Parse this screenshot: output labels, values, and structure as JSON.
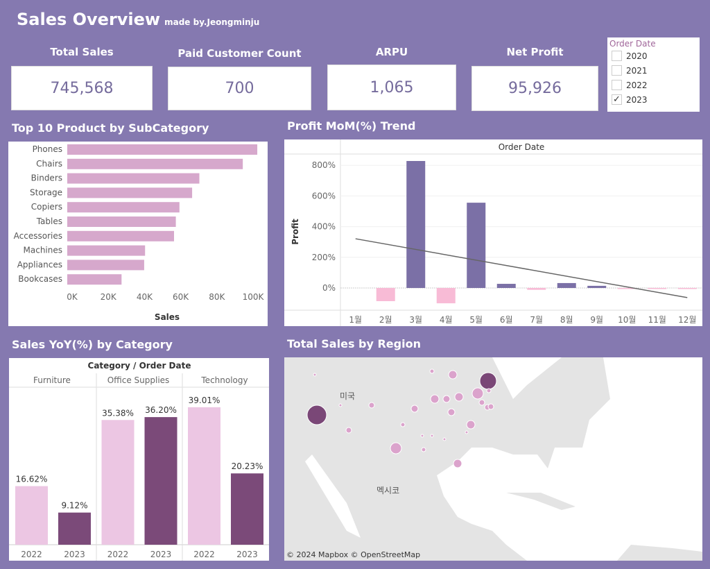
{
  "header": {
    "title": "Sales Overview",
    "subtitle": "made by.Jeongminju"
  },
  "kpis": [
    {
      "label": "Total Sales",
      "value": "745,568"
    },
    {
      "label": "Paid Customer Count",
      "value": "700"
    },
    {
      "label": "ARPU",
      "value": "1,065"
    },
    {
      "label": "Net Profit",
      "value": "95,926"
    }
  ],
  "filter": {
    "title": "Order Date",
    "options": [
      {
        "label": "2020",
        "checked": false
      },
      {
        "label": "2021",
        "checked": false
      },
      {
        "label": "2022",
        "checked": false
      },
      {
        "label": "2023",
        "checked": true
      }
    ]
  },
  "sections": {
    "top10": "Top 10 Product by SubCategory",
    "mom": "Profit MoM(%) Trend",
    "yoy": "Sales YoY(%) by Category",
    "region": "Total Sales by Region"
  },
  "colors": {
    "background": "#8579b0",
    "bar_pink": "#d6a8cc",
    "mom_positive": "#7b70a6",
    "mom_negative": "#f8bbd6",
    "yoy_2022": "#ecc6e3",
    "yoy_2023": "#7b4a79",
    "map_bubble": "#dba3cc",
    "map_bubble_large": "#7a4777"
  },
  "chart_data": [
    {
      "type": "bar",
      "orientation": "horizontal",
      "categories": [
        "Phones",
        "Chairs",
        "Binders",
        "Storage",
        "Copiers",
        "Tables",
        "Accessories",
        "Machines",
        "Appliances",
        "Bookcases"
      ],
      "values": [
        105000,
        97000,
        73000,
        69000,
        62000,
        60000,
        59000,
        43000,
        42500,
        30000
      ],
      "xlabel": "Sales",
      "xticks": [
        "0K",
        "20K",
        "40K",
        "60K",
        "80K",
        "100K"
      ],
      "xlim": [
        0,
        100000
      ]
    },
    {
      "type": "bar",
      "header": "Order Date",
      "ylabel": "Profit",
      "categories": [
        "1월",
        "2월",
        "3월",
        "4월",
        "5월",
        "6월",
        "7월",
        "8월",
        "9월",
        "10월",
        "11월",
        "12월"
      ],
      "values": [
        null,
        -86,
        828,
        -100,
        556,
        27,
        -12,
        32,
        14,
        -2,
        -5,
        -5
      ],
      "yticks": [
        "0%",
        "200%",
        "400%",
        "600%",
        "800%"
      ],
      "ylim": [
        -150,
        850
      ],
      "trendline": {
        "start": 321,
        "end": -63
      }
    },
    {
      "type": "bar",
      "header": "Category / Order Date",
      "groups": [
        {
          "category": "Furniture",
          "years": [
            "2022",
            "2023"
          ],
          "values": [
            16.62,
            9.12
          ],
          "labels": [
            "16.62%",
            "9.12%"
          ]
        },
        {
          "category": "Office Supplies",
          "years": [
            "2022",
            "2023"
          ],
          "values": [
            35.38,
            36.2
          ],
          "labels": [
            "35.38%",
            "36.20%"
          ]
        },
        {
          "category": "Technology",
          "years": [
            "2022",
            "2023"
          ],
          "values": [
            39.01,
            20.23
          ],
          "labels": [
            "39.01%",
            "20.23%"
          ]
        }
      ]
    }
  ],
  "map": {
    "labels": {
      "us": "미국",
      "mexico": "멕시코"
    },
    "attribution": "© 2024 Mapbox  © OpenStreetMap"
  }
}
